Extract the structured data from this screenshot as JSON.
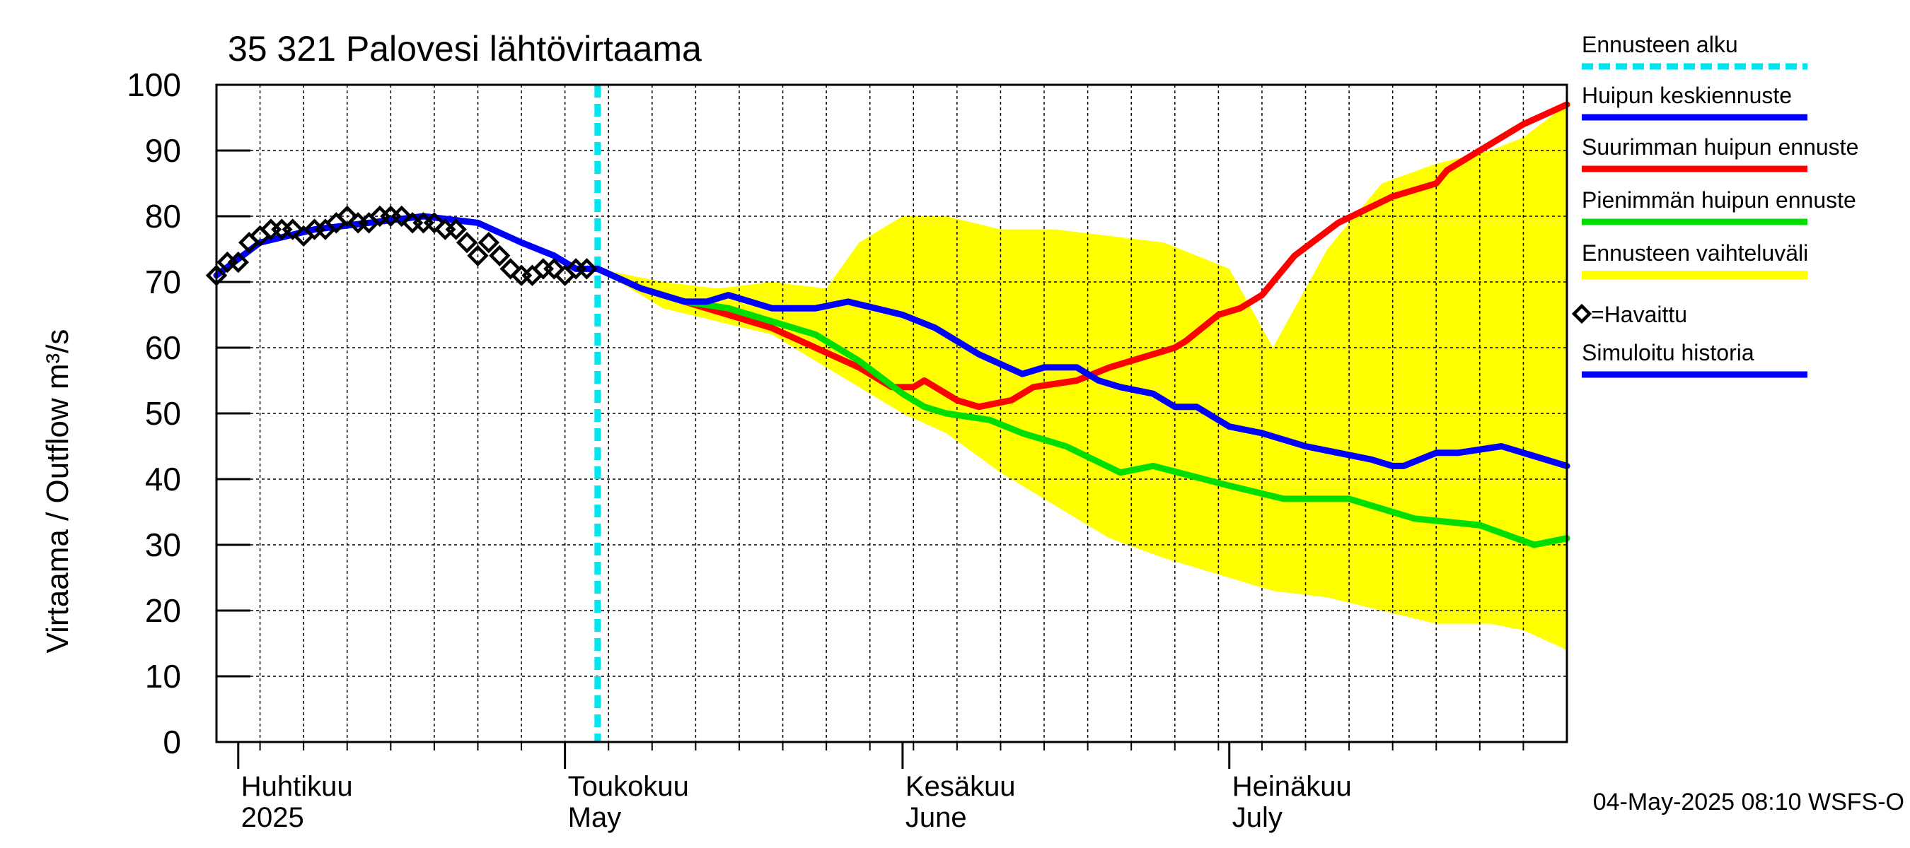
{
  "chart_data": {
    "type": "line",
    "title": "35 321 Palovesi lähtövirtaama",
    "ylabel": "Virtaama / Outflow    m³/s",
    "ylim": [
      0,
      100
    ],
    "yticks": [
      0,
      10,
      20,
      30,
      40,
      50,
      60,
      70,
      80,
      90,
      100
    ],
    "xlim": [
      "2025-03-30",
      "2025-08-01"
    ],
    "month_labels": [
      {
        "date": "2025-04-01",
        "fi": "Huhtikuu",
        "en": "2025"
      },
      {
        "date": "2025-05-01",
        "fi": "Toukokuu",
        "en": "May"
      },
      {
        "date": "2025-06-01",
        "fi": "Kesäkuu",
        "en": "June"
      },
      {
        "date": "2025-07-01",
        "fi": "Heinäkuu",
        "en": "July"
      }
    ],
    "forecast_start": "2025-05-04",
    "legend": {
      "placement": "right",
      "items": [
        {
          "label": "Ennusteen alku",
          "color": "#00e5ee",
          "style": "dashed"
        },
        {
          "label": "Huipun keskiennuste",
          "color": "#0000ff",
          "style": "solid"
        },
        {
          "label": "Suurimman huipun ennuste",
          "color": "#ff0000",
          "style": "solid"
        },
        {
          "label": "Pienimmän huipun ennuste",
          "color": "#00dd00",
          "style": "solid"
        },
        {
          "label": "Ennusteen vaihteluväli",
          "color": "#ffff00",
          "style": "band"
        },
        {
          "label": "=Havaittu",
          "color": "#000000",
          "style": "diamond"
        },
        {
          "label": "Simuloitu historia",
          "color": "#0000ff",
          "style": "solid"
        }
      ]
    },
    "footer": "04-May-2025 08:10 WSFS-O",
    "series": [
      {
        "name": "Ennusteen vaihteluväli",
        "kind": "band",
        "color": "#ffff00",
        "x": [
          "2025-05-04",
          "2025-05-10",
          "2025-05-15",
          "2025-05-20",
          "2025-05-25",
          "2025-05-28",
          "2025-06-01",
          "2025-06-05",
          "2025-06-10",
          "2025-06-15",
          "2025-06-20",
          "2025-06-25",
          "2025-07-01",
          "2025-07-05",
          "2025-07-10",
          "2025-07-15",
          "2025-07-20",
          "2025-07-25",
          "2025-07-28",
          "2025-08-01"
        ],
        "upper": [
          72,
          70,
          69,
          70,
          69,
          76,
          80,
          80,
          78,
          78,
          77,
          76,
          72,
          60,
          75,
          85,
          88,
          90,
          92,
          97
        ],
        "lower": [
          72,
          66,
          64,
          62,
          57,
          54,
          50,
          47,
          41,
          36,
          31,
          28,
          25,
          23,
          22,
          20,
          18,
          18,
          17,
          14
        ]
      },
      {
        "name": "Suurimman huipun ennuste",
        "color": "#ff0000",
        "x": [
          "2025-05-04",
          "2025-05-08",
          "2025-05-12",
          "2025-05-16",
          "2025-05-20",
          "2025-05-24",
          "2025-05-28",
          "2025-05-31",
          "2025-06-02",
          "2025-06-03",
          "2025-06-06",
          "2025-06-08",
          "2025-06-11",
          "2025-06-13",
          "2025-06-17",
          "2025-06-20",
          "2025-06-24",
          "2025-06-26",
          "2025-06-27",
          "2025-06-30",
          "2025-07-02",
          "2025-07-04",
          "2025-07-07",
          "2025-07-11",
          "2025-07-16",
          "2025-07-20",
          "2025-07-21",
          "2025-07-26",
          "2025-07-28",
          "2025-08-01"
        ],
        "values": [
          72,
          69,
          67,
          65,
          63,
          60,
          57,
          54,
          54,
          55,
          52,
          51,
          52,
          54,
          55,
          57,
          59,
          60,
          61,
          65,
          66,
          68,
          74,
          79,
          83,
          85,
          87,
          92,
          94,
          97
        ]
      },
      {
        "name": "Pienimmän huipun ennuste",
        "color": "#00dd00",
        "x": [
          "2025-05-04",
          "2025-05-08",
          "2025-05-12",
          "2025-05-16",
          "2025-05-20",
          "2025-05-24",
          "2025-05-28",
          "2025-06-01",
          "2025-06-03",
          "2025-06-05",
          "2025-06-09",
          "2025-06-12",
          "2025-06-16",
          "2025-06-21",
          "2025-06-24",
          "2025-07-01",
          "2025-07-06",
          "2025-07-12",
          "2025-07-18",
          "2025-07-24",
          "2025-07-29",
          "2025-08-01"
        ],
        "values": [
          72,
          69,
          67,
          66,
          64,
          62,
          58,
          53,
          51,
          50,
          49,
          47,
          45,
          41,
          42,
          39,
          37,
          37,
          34,
          33,
          30,
          31
        ]
      },
      {
        "name": "Huipun keskiennuste",
        "color": "#0000ff",
        "x": [
          "2025-05-04",
          "2025-05-08",
          "2025-05-12",
          "2025-05-14",
          "2025-05-16",
          "2025-05-20",
          "2025-05-24",
          "2025-05-27",
          "2025-06-01",
          "2025-06-04",
          "2025-06-08",
          "2025-06-12",
          "2025-06-14",
          "2025-06-17",
          "2025-06-19",
          "2025-06-21",
          "2025-06-24",
          "2025-06-26",
          "2025-06-28",
          "2025-07-01",
          "2025-07-04",
          "2025-07-08",
          "2025-07-11",
          "2025-07-14",
          "2025-07-16",
          "2025-07-17",
          "2025-07-20",
          "2025-07-22",
          "2025-07-26",
          "2025-08-01"
        ],
        "values": [
          72,
          69,
          67,
          67,
          68,
          66,
          66,
          67,
          65,
          63,
          59,
          56,
          57,
          57,
          55,
          54,
          53,
          51,
          51,
          48,
          47,
          45,
          44,
          43,
          42,
          42,
          44,
          44,
          45,
          42
        ]
      },
      {
        "name": "Simuloitu historia",
        "color": "#0000ff",
        "x": [
          "2025-03-30",
          "2025-04-03",
          "2025-04-08",
          "2025-04-13",
          "2025-04-18",
          "2025-04-23",
          "2025-04-27",
          "2025-04-30",
          "2025-05-02",
          "2025-05-04"
        ],
        "values": [
          71,
          76,
          78,
          79,
          80,
          79,
          76,
          74,
          72,
          72
        ]
      },
      {
        "name": "=Havaittu",
        "kind": "markers",
        "color": "#000000",
        "x": [
          "2025-03-30",
          "2025-03-31",
          "2025-04-01",
          "2025-04-02",
          "2025-04-03",
          "2025-04-04",
          "2025-04-05",
          "2025-04-06",
          "2025-04-07",
          "2025-04-08",
          "2025-04-09",
          "2025-04-10",
          "2025-04-11",
          "2025-04-12",
          "2025-04-13",
          "2025-04-14",
          "2025-04-15",
          "2025-04-16",
          "2025-04-17",
          "2025-04-18",
          "2025-04-19",
          "2025-04-20",
          "2025-04-21",
          "2025-04-22",
          "2025-04-23",
          "2025-04-24",
          "2025-04-25",
          "2025-04-26",
          "2025-04-27",
          "2025-04-28",
          "2025-04-29",
          "2025-04-30",
          "2025-05-01",
          "2025-05-02",
          "2025-05-03"
        ],
        "values": [
          71,
          73,
          73,
          76,
          77,
          78,
          78,
          78,
          77,
          78,
          78,
          79,
          80,
          79,
          79,
          80,
          80,
          80,
          79,
          79,
          79,
          78,
          78,
          76,
          74,
          76,
          74,
          72,
          71,
          71,
          72,
          72,
          71,
          72,
          72
        ]
      }
    ]
  }
}
